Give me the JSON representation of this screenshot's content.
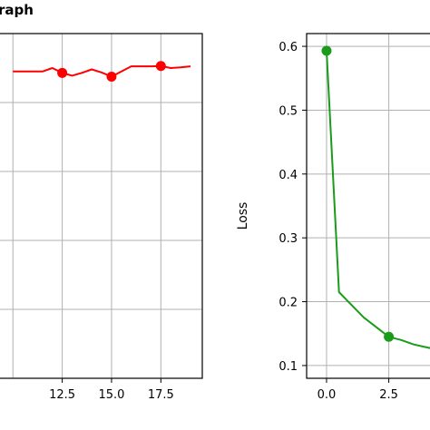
{
  "chart_data": [
    {
      "type": "line",
      "title": "raph",
      "xlabel": "",
      "ylabel": "",
      "xticks": [
        "12.5",
        "15.0",
        "17.5"
      ],
      "xlim": [
        9.3,
        19.6
      ],
      "ylim": [
        0.0,
        1.0
      ],
      "grid": true,
      "series": [
        {
          "color": "#ff0000",
          "x": [
            10.0,
            10.5,
            11.0,
            11.5,
            12.0,
            12.5,
            13.0,
            13.5,
            14.0,
            14.5,
            15.0,
            15.5,
            16.0,
            16.5,
            17.0,
            17.5,
            18.0,
            18.5,
            19.0
          ],
          "y": [
            0.89,
            0.89,
            0.89,
            0.89,
            0.9,
            0.886,
            0.878,
            0.886,
            0.896,
            0.887,
            0.875,
            0.89,
            0.905,
            0.905,
            0.905,
            0.906,
            0.9,
            0.902,
            0.905
          ],
          "marker_x": [
            12.5,
            15.0,
            17.5
          ]
        }
      ]
    },
    {
      "type": "line",
      "title": "",
      "xlabel": "",
      "ylabel": "Loss",
      "xticks": [
        "0.0",
        "2.5"
      ],
      "yticks": [
        "0.1",
        "0.2",
        "0.3",
        "0.4",
        "0.5",
        "0.6"
      ],
      "xlim": [
        -0.8,
        4.3
      ],
      "ylim": [
        0.08,
        0.62
      ],
      "grid": true,
      "series": [
        {
          "color": "#1a9c1a",
          "x": [
            0.0,
            0.5,
            1.0,
            1.5,
            2.0,
            2.5,
            3.0,
            3.5,
            4.3
          ],
          "y": [
            0.593,
            0.215,
            0.195,
            0.175,
            0.16,
            0.145,
            0.14,
            0.133,
            0.126
          ],
          "marker_x": [
            0.0,
            2.5
          ]
        }
      ]
    }
  ]
}
